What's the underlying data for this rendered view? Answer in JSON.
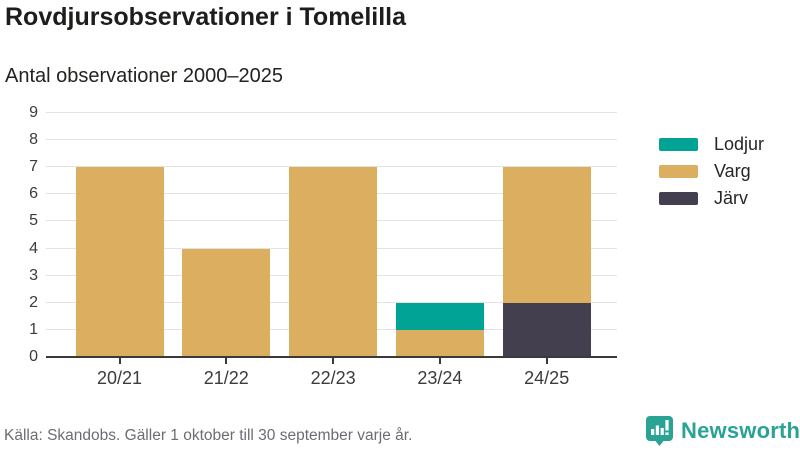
{
  "chart_data": {
    "type": "bar",
    "stacked": true,
    "title": "Rovdjursobservationer i Tomelilla",
    "subtitle": "Antal observationer 2000–2025",
    "categories": [
      "20/21",
      "21/22",
      "22/23",
      "23/24",
      "24/25"
    ],
    "series": [
      {
        "name": "Järv",
        "color": "#433f4e",
        "values": [
          0,
          0,
          0,
          0,
          2
        ]
      },
      {
        "name": "Varg",
        "color": "#dcae60",
        "values": [
          7,
          4,
          7,
          1,
          5
        ]
      },
      {
        "name": "Lodjur",
        "color": "#00a396",
        "values": [
          0,
          0,
          0,
          1,
          0
        ]
      }
    ],
    "legend": [
      {
        "label": "Lodjur",
        "color": "#00a396"
      },
      {
        "label": "Varg",
        "color": "#dcae60"
      },
      {
        "label": "Järv",
        "color": "#433f4e"
      }
    ],
    "legend_position": "right",
    "ylim": [
      0,
      9
    ],
    "yticks": [
      0,
      1,
      2,
      3,
      4,
      5,
      6,
      7,
      8,
      9
    ],
    "grid": true,
    "xlabel": "",
    "ylabel": ""
  },
  "footer": {
    "source": "Källa: Skandobs. Gäller 1 oktober till 30 september varje år.",
    "brand": "Newsworthy"
  },
  "colors": {
    "axis": "#3a3a3a",
    "grid": "#e3e3e3",
    "brand_teal": "#2aa394"
  }
}
